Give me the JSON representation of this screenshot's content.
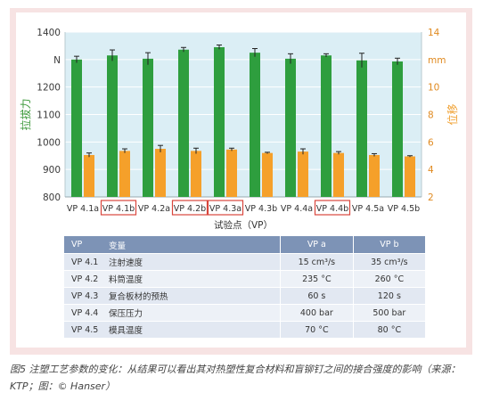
{
  "chart_data": {
    "type": "bar",
    "categories": [
      "VP 4.1a",
      "VP 4.1b",
      "VP 4.2a",
      "VP 4.2b",
      "VP 4.3a",
      "VP 4.3b",
      "VP 4.4a",
      "VP 4.4b",
      "VP 4.5a",
      "VP 4.5b"
    ],
    "boxed_categories": [
      "VP 4.1b",
      "VP 4.2b",
      "VP 4.3a",
      "VP 4.4b"
    ],
    "xlabel": "试验点（VP）",
    "y_left": {
      "label": "拉拔力",
      "unit": "N",
      "ylim": [
        800,
        1400
      ],
      "ticks": [
        800,
        900,
        1000,
        1100,
        1200,
        1300,
        1400
      ],
      "color": "#3f9a3c"
    },
    "y_right": {
      "label": "位移",
      "unit": "mm",
      "ylim": [
        2,
        14
      ],
      "ticks": [
        2,
        4,
        6,
        8,
        10,
        12,
        14
      ],
      "color": "#f0a030"
    },
    "series": [
      {
        "name": "拉拔力",
        "axis": "left",
        "color": "#2e9e3e",
        "values": [
          1300,
          1315,
          1303,
          1336,
          1345,
          1325,
          1303,
          1315,
          1297,
          1293
        ],
        "errors": [
          12,
          20,
          22,
          8,
          8,
          15,
          18,
          6,
          26,
          12
        ]
      },
      {
        "name": "位移",
        "axis": "right",
        "color": "#f5a02a",
        "values": [
          5.05,
          5.35,
          5.5,
          5.35,
          5.45,
          5.2,
          5.3,
          5.2,
          5.05,
          4.95
        ],
        "errors": [
          0.15,
          0.15,
          0.25,
          0.2,
          0.1,
          0.05,
          0.2,
          0.1,
          0.1,
          0.05
        ]
      }
    ],
    "grid": true
  },
  "table": {
    "headers": [
      "VP",
      "变量",
      "VP a",
      "VP b"
    ],
    "rows": [
      {
        "vp": "VP 4.1",
        "variable": "注射速度",
        "a": "15 cm³/s",
        "b": "35 cm³/s"
      },
      {
        "vp": "VP 4.2",
        "variable": "料筒温度",
        "a": "235 °C",
        "b": "260 °C"
      },
      {
        "vp": "VP 4.3",
        "variable": "复合板材的预热",
        "a": "60 s",
        "b": "120 s"
      },
      {
        "vp": "VP 4.4",
        "variable": "保压压力",
        "a": "400 bar",
        "b": "500 bar"
      },
      {
        "vp": "VP 4.5",
        "variable": "模具温度",
        "a": "70 °C",
        "b": "80 °C"
      }
    ]
  },
  "caption": "图5 注塑工艺参数的变化：从结果可以看出其对热塑性复合材料和盲铆钉之间的接合强度的影响（来源：KTP；图：© Hanser）",
  "colors": {
    "frame": "#f7e3e3",
    "plot_bg": "#dbeef5",
    "grid": "#ffffff",
    "box": "#d9463c",
    "table_header": "#7d93b6"
  }
}
